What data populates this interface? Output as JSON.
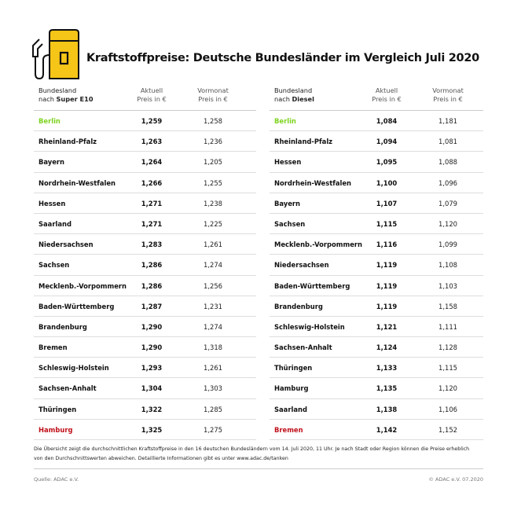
{
  "title": "Kraftstoffpreise: Deutsche Bundesländer im Vergleich Juli 2020",
  "colors": {
    "accent_yellow": "#F5C518",
    "best": "#7ED321",
    "worst": "#C0101A"
  },
  "icon": "fuel-pump-icon",
  "tables": [
    {
      "header": {
        "col1_line1": "Bundesland",
        "col1_prefix": "nach ",
        "col1_fuel": "Super E10",
        "col2_line1": "Aktuell",
        "col2_line2": "Preis in €",
        "col3_line1": "Vormonat",
        "col3_line2": "Preis in €"
      },
      "rows": [
        {
          "state": "Berlin",
          "current": "1,259",
          "previous": "1,258",
          "highlight": "best"
        },
        {
          "state": "Rheinland-Pfalz",
          "current": "1,263",
          "previous": "1,236"
        },
        {
          "state": "Bayern",
          "current": "1,264",
          "previous": "1,205"
        },
        {
          "state": "Nordrhein-Westfalen",
          "current": "1,266",
          "previous": "1,255"
        },
        {
          "state": "Hessen",
          "current": "1,271",
          "previous": "1,238"
        },
        {
          "state": "Saarland",
          "current": "1,271",
          "previous": "1,225"
        },
        {
          "state": "Niedersachsen",
          "current": "1,283",
          "previous": "1,261"
        },
        {
          "state": "Sachsen",
          "current": "1,286",
          "previous": "1,274"
        },
        {
          "state": "Mecklenb.-Vorpommern",
          "current": "1,286",
          "previous": "1,256"
        },
        {
          "state": "Baden-Württemberg",
          "current": "1,287",
          "previous": "1,231"
        },
        {
          "state": "Brandenburg",
          "current": "1,290",
          "previous": "1,274"
        },
        {
          "state": "Bremen",
          "current": "1,290",
          "previous": "1,318"
        },
        {
          "state": "Schleswig-Holstein",
          "current": "1,293",
          "previous": "1,261"
        },
        {
          "state": "Sachsen-Anhalt",
          "current": "1,304",
          "previous": "1,303"
        },
        {
          "state": "Thüringen",
          "current": "1,322",
          "previous": "1,285"
        },
        {
          "state": "Hamburg",
          "current": "1,325",
          "previous": "1,275",
          "highlight": "worst"
        }
      ]
    },
    {
      "header": {
        "col1_line1": "Bundesland",
        "col1_prefix": "nach ",
        "col1_fuel": "Diesel",
        "col2_line1": "Aktuell",
        "col2_line2": "Preis in €",
        "col3_line1": "Vormonat",
        "col3_line2": "Preis in €"
      },
      "rows": [
        {
          "state": "Berlin",
          "current": "1,084",
          "previous": "1,181",
          "highlight": "best"
        },
        {
          "state": "Rheinland-Pfalz",
          "current": "1,094",
          "previous": "1,081"
        },
        {
          "state": "Hessen",
          "current": "1,095",
          "previous": "1,088"
        },
        {
          "state": "Nordrhein-Westfalen",
          "current": "1,100",
          "previous": "1,096"
        },
        {
          "state": "Bayern",
          "current": "1,107",
          "previous": "1,079"
        },
        {
          "state": "Sachsen",
          "current": "1,115",
          "previous": "1,120"
        },
        {
          "state": "Mecklenb.-Vorpommern",
          "current": "1,116",
          "previous": "1,099"
        },
        {
          "state": "Niedersachsen",
          "current": "1,119",
          "previous": "1,108"
        },
        {
          "state": "Baden-Württemberg",
          "current": "1,119",
          "previous": "1,103"
        },
        {
          "state": "Brandenburg",
          "current": "1,119",
          "previous": "1,158"
        },
        {
          "state": "Schleswig-Holstein",
          "current": "1,121",
          "previous": "1,111"
        },
        {
          "state": "Sachsen-Anhalt",
          "current": "1,124",
          "previous": "1,128"
        },
        {
          "state": "Thüringen",
          "current": "1,133",
          "previous": "1,115"
        },
        {
          "state": "Hamburg",
          "current": "1,135",
          "previous": "1,120"
        },
        {
          "state": "Saarland",
          "current": "1,138",
          "previous": "1,106"
        },
        {
          "state": "Bremen",
          "current": "1,142",
          "previous": "1,152",
          "highlight": "worst"
        }
      ]
    }
  ],
  "footnote": "Die Übersicht zeigt die durchschnittlichen Kraftstoffpreise in den 16 deutschen Bundesländern vom 14. Juli 2020, 11 Uhr.  Je nach Stadt oder Region können die Preise erheblich von den Durchschnittswerten abweichen. Detaillierte Informationen gibt es unter www.adac.de/tanken",
  "source": "Quelle: ADAC e.V.",
  "copyright": "© ADAC e.V. 07.2020"
}
